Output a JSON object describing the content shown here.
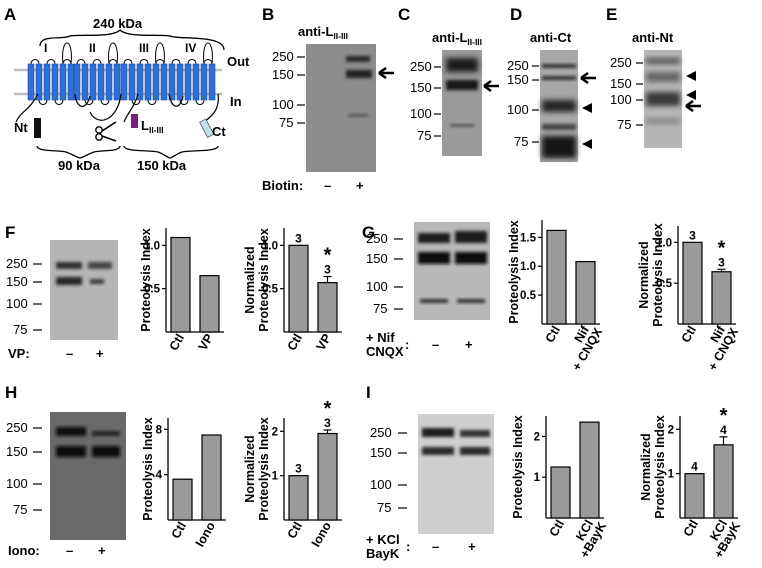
{
  "panel_a": {
    "letter": "A",
    "top_kda": "240 kDa",
    "out_label": "Out",
    "in_label": "In",
    "domains": [
      "I",
      "II",
      "III",
      "IV"
    ],
    "nt_label": "Nt",
    "ct_label": "Ct",
    "l_label_main": "L",
    "l_label_sub": "II-III",
    "left_kda": "90 kDa",
    "right_kda": "150 kDa",
    "colors": {
      "helix": "#2f6fd6",
      "membrane": "#bdbdbd",
      "nt_marker": "#111111",
      "l_marker": "#7a1e82",
      "ct_marker": "#bfe1ea"
    }
  },
  "panel_b": {
    "letter": "B",
    "antibody_main": "anti-L",
    "antibody_sub": "II-III",
    "mw": [
      "250",
      "150",
      "100",
      "75"
    ],
    "row_label": "Biotin:",
    "lanes": [
      "–",
      "+"
    ]
  },
  "panel_c": {
    "letter": "C",
    "antibody_main": "anti-L",
    "antibody_sub": "II-III",
    "mw": [
      "250",
      "150",
      "100",
      "75"
    ]
  },
  "panel_d": {
    "letter": "D",
    "antibody": "anti-Ct",
    "mw": [
      "250",
      "150",
      "100",
      "75"
    ]
  },
  "panel_e": {
    "letter": "E",
    "antibody": "anti-Nt",
    "mw": [
      "250",
      "150",
      "100",
      "75"
    ]
  },
  "panel_f": {
    "letter": "F",
    "mw": [
      "250",
      "150",
      "100",
      "75"
    ],
    "row_label": "VP:",
    "lanes": [
      "–",
      "+"
    ],
    "chart_pi": {
      "type": "bar",
      "ylabel": "Proteolysis Index",
      "categories": [
        "Ctl",
        "VP"
      ],
      "values": [
        1.09,
        0.65
      ],
      "ylim": [
        0,
        1.2
      ],
      "ticks": [
        "0.5",
        "1.0"
      ],
      "tick_values": [
        0.5,
        1.0
      ]
    },
    "chart_norm": {
      "type": "bar",
      "ylabel_line1": "Normalized",
      "ylabel_line2": "Proteolysis Index",
      "categories": [
        "Ctl",
        "VP"
      ],
      "values": [
        1.0,
        0.57
      ],
      "errors": [
        0,
        0.07
      ],
      "n_labels": [
        "3",
        "3"
      ],
      "sig": [
        "",
        "*"
      ],
      "ylim": [
        0,
        1.2
      ],
      "ticks": [
        "0.5",
        "1.0"
      ],
      "tick_values": [
        0.5,
        1.0
      ]
    }
  },
  "panel_g": {
    "letter": "G",
    "mw": [
      "250",
      "150",
      "100",
      "75"
    ],
    "row_label_1": "+ Nif",
    "row_label_2": "CNQX",
    "row_colon": ":",
    "lanes": [
      "–",
      "+"
    ],
    "chart_pi": {
      "type": "bar",
      "ylabel": "Proteolysis Index",
      "categories": [
        "Ctl",
        "Nif"
      ],
      "category_sub": [
        "",
        "+ CNQX"
      ],
      "values": [
        1.62,
        1.08
      ],
      "ylim": [
        0,
        1.8
      ],
      "ticks": [
        "0.5",
        "1.0",
        "1.5"
      ],
      "tick_values": [
        0.5,
        1.0,
        1.5
      ]
    },
    "chart_norm": {
      "type": "bar",
      "ylabel_line1": "Normalized",
      "ylabel_line2": "Proteolysis Index",
      "categories": [
        "Ctl",
        "Nif"
      ],
      "category_sub": [
        "",
        "+ CNQX"
      ],
      "values": [
        1.0,
        0.64
      ],
      "errors": [
        0,
        0.03
      ],
      "n_labels": [
        "3",
        "3"
      ],
      "sig": [
        "",
        "*"
      ],
      "ylim": [
        0,
        1.2
      ],
      "ticks": [
        "0.5",
        "1.0"
      ],
      "tick_values": [
        0.5,
        1.0
      ]
    }
  },
  "panel_h": {
    "letter": "H",
    "mw": [
      "250",
      "150",
      "100",
      "75"
    ],
    "row_label": "Iono:",
    "lanes": [
      "–",
      "+"
    ],
    "chart_pi": {
      "type": "bar",
      "ylabel": "Proteolysis Index",
      "categories": [
        "Ctl",
        "Iono"
      ],
      "values": [
        3.6,
        7.5
      ],
      "ylim": [
        0,
        9
      ],
      "ticks": [
        "4",
        "8"
      ],
      "tick_values": [
        4,
        8
      ]
    },
    "chart_norm": {
      "type": "bar",
      "ylabel_line1": "Normalized",
      "ylabel_line2": "Proteolysis Index",
      "categories": [
        "Ctl",
        "Iono"
      ],
      "values": [
        1.0,
        1.95
      ],
      "errors": [
        0,
        0.08
      ],
      "n_labels": [
        "3",
        "3"
      ],
      "sig": [
        "",
        "*"
      ],
      "ylim": [
        0,
        2.3
      ],
      "ticks": [
        "1",
        "2"
      ],
      "tick_values": [
        1,
        2
      ]
    }
  },
  "panel_i": {
    "letter": "I",
    "mw": [
      "250",
      "150",
      "100",
      "75"
    ],
    "row_label_1": "+ KCl",
    "row_label_2": "BayK",
    "row_colon": ":",
    "lanes": [
      "–",
      "+"
    ],
    "chart_pi": {
      "type": "bar",
      "ylabel": "Proteolysis Index",
      "categories": [
        "Ctl",
        "KCl"
      ],
      "category_sub": [
        "",
        "+BayK"
      ],
      "values": [
        1.25,
        2.35
      ],
      "ylim": [
        0,
        2.5
      ],
      "ticks": [
        "1",
        "2"
      ],
      "tick_values": [
        1,
        2
      ]
    },
    "chart_norm": {
      "type": "bar",
      "ylabel_line1": "Normalized",
      "ylabel_line2": "Proteolysis Index",
      "categories": [
        "Ctl",
        "KCl"
      ],
      "category_sub": [
        "",
        "+BayK"
      ],
      "values": [
        1.0,
        1.65
      ],
      "errors": [
        0,
        0.18
      ],
      "n_labels": [
        "4",
        "4"
      ],
      "sig": [
        "",
        "*"
      ],
      "ylim": [
        0,
        2.3
      ],
      "ticks": [
        "1",
        "2"
      ],
      "tick_values": [
        1,
        2
      ]
    }
  },
  "chart_data": [
    {
      "panel": "F",
      "type": "bar",
      "ylabel": "Proteolysis Index",
      "categories": [
        "Ctl",
        "VP"
      ],
      "values": [
        1.09,
        0.65
      ]
    },
    {
      "panel": "F",
      "type": "bar",
      "ylabel": "Normalized Proteolysis Index",
      "categories": [
        "Ctl",
        "VP"
      ],
      "values": [
        1.0,
        0.57
      ],
      "errors": [
        0,
        0.07
      ],
      "n": [
        3,
        3
      ]
    },
    {
      "panel": "G",
      "type": "bar",
      "ylabel": "Proteolysis Index",
      "categories": [
        "Ctl",
        "Nif + CNQX"
      ],
      "values": [
        1.62,
        1.08
      ]
    },
    {
      "panel": "G",
      "type": "bar",
      "ylabel": "Normalized Proteolysis Index",
      "categories": [
        "Ctl",
        "Nif + CNQX"
      ],
      "values": [
        1.0,
        0.64
      ],
      "errors": [
        0,
        0.03
      ],
      "n": [
        3,
        3
      ]
    },
    {
      "panel": "H",
      "type": "bar",
      "ylabel": "Proteolysis Index",
      "categories": [
        "Ctl",
        "Iono"
      ],
      "values": [
        3.6,
        7.5
      ]
    },
    {
      "panel": "H",
      "type": "bar",
      "ylabel": "Normalized Proteolysis Index",
      "categories": [
        "Ctl",
        "Iono"
      ],
      "values": [
        1.0,
        1.95
      ],
      "errors": [
        0,
        0.08
      ],
      "n": [
        3,
        3
      ]
    },
    {
      "panel": "I",
      "type": "bar",
      "ylabel": "Proteolysis Index",
      "categories": [
        "Ctl",
        "KCl +BayK"
      ],
      "values": [
        1.25,
        2.35
      ]
    },
    {
      "panel": "I",
      "type": "bar",
      "ylabel": "Normalized Proteolysis Index",
      "categories": [
        "Ctl",
        "KCl +BayK"
      ],
      "values": [
        1.0,
        1.65
      ],
      "errors": [
        0,
        0.18
      ],
      "n": [
        4,
        4
      ]
    }
  ]
}
